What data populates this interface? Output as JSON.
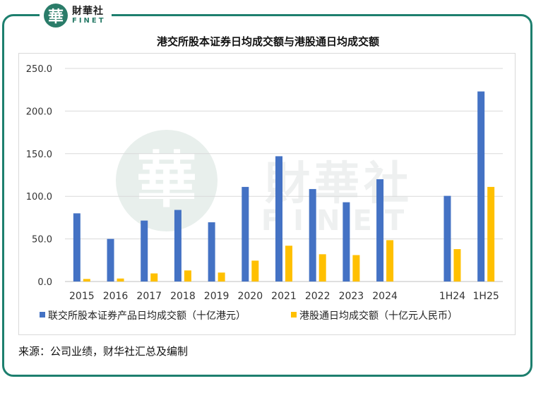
{
  "branding": {
    "logo_seal": "華",
    "logo_cn": "財華社",
    "logo_en": "FINET",
    "watermark_seal": "華",
    "watermark_cn": "財華社",
    "watermark_en": "FINET",
    "frame_color": "#1d7f6e"
  },
  "source": "来源：公司业绩，财华社汇总及编制",
  "chart_data": {
    "type": "bar",
    "title": "港交所股本证券日均成交额与港股通日均成交额",
    "categories": [
      "2015",
      "2016",
      "2017",
      "2018",
      "2019",
      "2020",
      "2021",
      "2022",
      "2023",
      "2024",
      "",
      "1H24",
      "1H25"
    ],
    "series": [
      {
        "name": "联交所股本证券产品日均成交额（十亿港元）",
        "color": "#4472c4",
        "values": [
          80.0,
          50.0,
          71.5,
          84.0,
          69.5,
          111.0,
          147.0,
          108.5,
          93.0,
          120.0,
          null,
          100.5,
          223.0
        ]
      },
      {
        "name": "港股通日均成交额（十亿元人民币）",
        "color": "#ffc000",
        "values": [
          3.0,
          3.5,
          9.5,
          13.0,
          10.5,
          24.5,
          42.0,
          32.0,
          31.0,
          48.5,
          null,
          38.0,
          111.0
        ]
      }
    ],
    "ylim": [
      0,
      250
    ],
    "yticks": [
      "0.0",
      "50.0",
      "100.0",
      "150.0",
      "200.0",
      "250.0"
    ],
    "grid": true,
    "legend_position": "bottom"
  }
}
